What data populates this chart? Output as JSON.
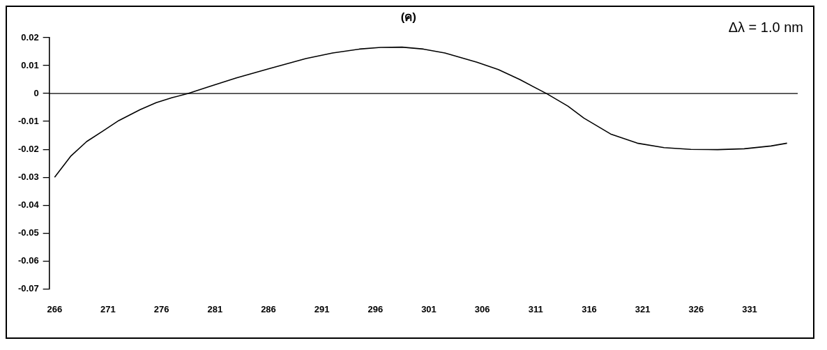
{
  "chart_data": {
    "type": "line",
    "title": "(ค)",
    "annotations": [
      "Δλ = 1.0 nm"
    ],
    "xlim": [
      265.5,
      335.5
    ],
    "xticks": [
      266,
      271,
      276,
      281,
      286,
      291,
      296,
      301,
      306,
      311,
      316,
      321,
      326,
      331
    ],
    "ylim": [
      -0.07,
      0.02
    ],
    "yticks": [
      0.02,
      0.01,
      0,
      -0.01,
      -0.02,
      -0.03,
      -0.04,
      -0.05,
      -0.06,
      -0.07
    ],
    "grid": false,
    "legend": false,
    "marker": "none",
    "line_style": "solid",
    "ref_lines": [
      {
        "axis": "y",
        "value": 0,
        "color": "#000000"
      }
    ],
    "series": [
      {
        "color": "#000000",
        "x": [
          266,
          267.5,
          269,
          270.5,
          272,
          274,
          275.5,
          277,
          278.5,
          280.5,
          283,
          286,
          289.5,
          292,
          294.5,
          296.5,
          298.5,
          300.5,
          302.5,
          305.5,
          307.5,
          309.5,
          312,
          314,
          315.5,
          318,
          320.5,
          323,
          325.5,
          328,
          330.5,
          333,
          334.5
        ],
        "values": [
          -0.03,
          -0.0225,
          -0.0172,
          -0.0135,
          -0.0097,
          -0.0058,
          -0.0033,
          -0.0015,
          0,
          0.0025,
          0.0056,
          0.0088,
          0.0125,
          0.0145,
          0.0159,
          0.0165,
          0.0166,
          0.0159,
          0.0145,
          0.0112,
          0.0086,
          0.005,
          0,
          -0.0045,
          -0.0088,
          -0.0145,
          -0.0178,
          -0.0194,
          -0.02,
          -0.0201,
          -0.0198,
          -0.0188,
          -0.0178
        ]
      }
    ]
  }
}
